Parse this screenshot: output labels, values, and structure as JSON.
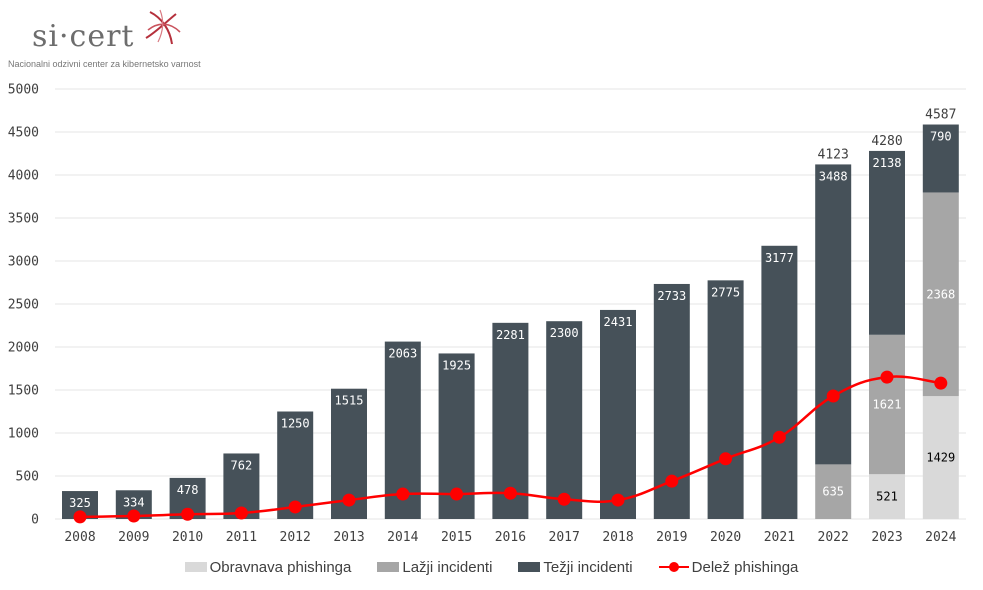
{
  "logo": {
    "brand": "si·cert",
    "tagline": "Nacionalni odzivni center za kibernetsko varnost"
  },
  "colors": {
    "obravnava": "#d9d9d9",
    "lazji": "#a6a6a6",
    "tezji": "#465159",
    "delez": "#ff0000",
    "grid": "#e6e6e6",
    "text": "#404040"
  },
  "chart_data": {
    "type": "bar",
    "stacked": true,
    "title": "",
    "xlabel": "",
    "ylabel": "",
    "ylim": [
      0,
      5000
    ],
    "yticks": [
      0,
      500,
      1000,
      1500,
      2000,
      2500,
      3000,
      3500,
      4000,
      4500,
      5000
    ],
    "grid": true,
    "legend_position": "bottom",
    "categories": [
      "2008",
      "2009",
      "2010",
      "2011",
      "2012",
      "2013",
      "2014",
      "2015",
      "2016",
      "2017",
      "2018",
      "2019",
      "2020",
      "2021",
      "2022",
      "2023",
      "2024"
    ],
    "series": [
      {
        "name": "Obravnava phishinga",
        "type": "bar",
        "color_key": "obravnava",
        "label_color": "#000000",
        "values": [
          0,
          0,
          0,
          0,
          0,
          0,
          0,
          0,
          0,
          0,
          0,
          0,
          0,
          0,
          0,
          521,
          1429
        ]
      },
      {
        "name": "Lažji incidenti",
        "type": "bar",
        "color_key": "lazji",
        "label_color": "#ffffff",
        "values": [
          0,
          0,
          0,
          0,
          0,
          0,
          0,
          0,
          0,
          0,
          0,
          0,
          0,
          0,
          635,
          1621,
          2368
        ]
      },
      {
        "name": "Težji incidenti",
        "type": "bar",
        "color_key": "tezji",
        "label_color": "#ffffff",
        "values": [
          325,
          334,
          478,
          762,
          1250,
          1515,
          2063,
          1925,
          2281,
          2300,
          2431,
          2733,
          2775,
          3177,
          3488,
          2138,
          790
        ]
      },
      {
        "name": "Delež phishinga",
        "type": "line",
        "color_key": "delez",
        "smooth": true,
        "values": [
          25,
          35,
          55,
          70,
          140,
          220,
          290,
          290,
          300,
          230,
          220,
          440,
          700,
          950,
          1430,
          1650,
          1580
        ]
      }
    ],
    "totals": [
      null,
      null,
      null,
      null,
      null,
      null,
      null,
      null,
      null,
      null,
      null,
      null,
      null,
      null,
      4123,
      4280,
      4587
    ]
  }
}
